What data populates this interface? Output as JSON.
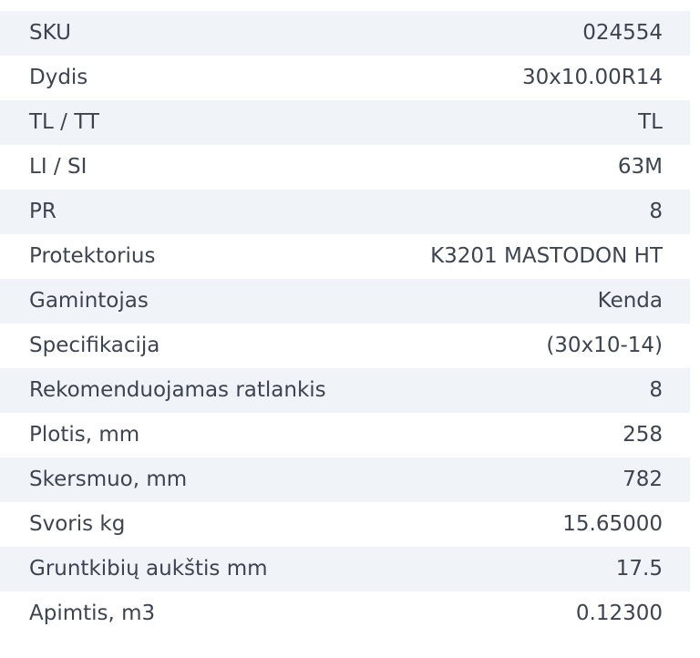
{
  "table": {
    "rows": [
      {
        "label": "SKU",
        "value": "024554"
      },
      {
        "label": "Dydis",
        "value": "30x10.00R14"
      },
      {
        "label": "TL / TT",
        "value": "TL"
      },
      {
        "label": "LI / SI",
        "value": "63M"
      },
      {
        "label": "PR",
        "value": "8"
      },
      {
        "label": "Protektorius",
        "value": "K3201 MASTODON HT"
      },
      {
        "label": "Gamintojas",
        "value": "Kenda"
      },
      {
        "label": "Specifikacija",
        "value": "(30x10-14)"
      },
      {
        "label": "Rekomenduojamas ratlankis",
        "value": "8"
      },
      {
        "label": "Plotis, mm",
        "value": "258"
      },
      {
        "label": "Skersmuo, mm",
        "value": "782"
      },
      {
        "label": "Svoris kg",
        "value": "15.65000"
      },
      {
        "label": "Gruntkibių aukštis mm",
        "value": "17.5"
      },
      {
        "label": "Apimtis, m3",
        "value": "0.12300"
      }
    ],
    "colors": {
      "stripe": "#f0f3f8",
      "row_background": "#ffffff",
      "text": "#3d4450"
    }
  }
}
